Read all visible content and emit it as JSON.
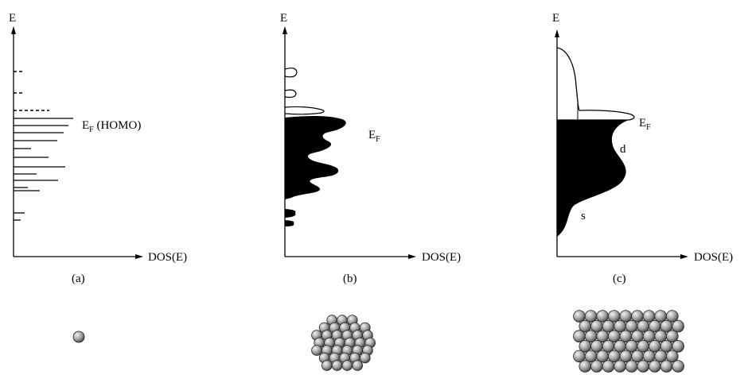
{
  "panels": [
    {
      "id": "a",
      "y_label": "E",
      "x_label": "DOS(E)",
      "caption": "(a)",
      "fermi_label": {
        "main": "E",
        "sub": "F",
        "suffix": " (HOMO)"
      }
    },
    {
      "id": "b",
      "y_label": "E",
      "x_label": "DOS(E)",
      "caption": "(b)",
      "fermi_label": {
        "main": "E",
        "sub": "F",
        "suffix": ""
      }
    },
    {
      "id": "c",
      "y_label": "E",
      "x_label": "DOS(E)",
      "caption": "(c)",
      "fermi_label": {
        "main": "E",
        "sub": "F",
        "suffix": ""
      },
      "band_labels": {
        "d": "d",
        "s": "s"
      }
    }
  ],
  "clusters": [
    {
      "panel": "a",
      "description_icon": "single-atom-icon"
    },
    {
      "panel": "b",
      "description_icon": "atom-cluster-icon"
    },
    {
      "panel": "c",
      "description_icon": "bulk-lattice-icon"
    }
  ],
  "colors": {
    "ink": "#000000",
    "sphere_light": "#f2f2f2",
    "sphere_dark": "#3a3a3a"
  }
}
